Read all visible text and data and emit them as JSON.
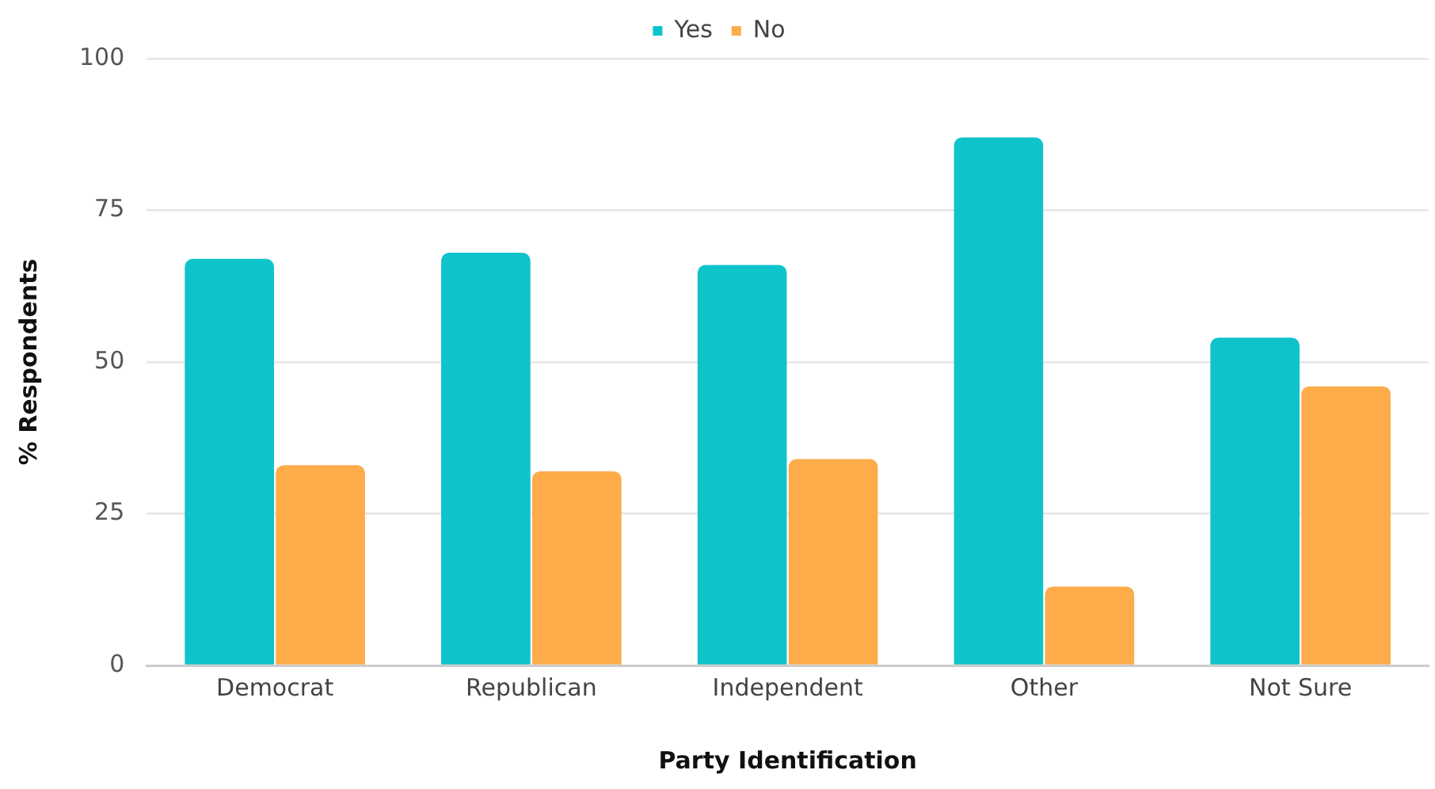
{
  "chart_data": {
    "type": "bar",
    "xlabel": "Party Identification",
    "ylabel": "% Respondents",
    "categories": [
      "Democrat",
      "Republican",
      "Independent",
      "Other",
      "Not Sure"
    ],
    "series": [
      {
        "name": "Yes",
        "color": "#0fc3cb",
        "values": [
          67,
          68,
          66,
          87,
          54
        ]
      },
      {
        "name": "No",
        "color": "#feab4a",
        "values": [
          33,
          32,
          34,
          13,
          46
        ]
      }
    ],
    "ylim": [
      0,
      100
    ],
    "yticks": [
      0,
      25,
      50,
      75,
      100
    ],
    "grid": "y",
    "legend": "top"
  }
}
